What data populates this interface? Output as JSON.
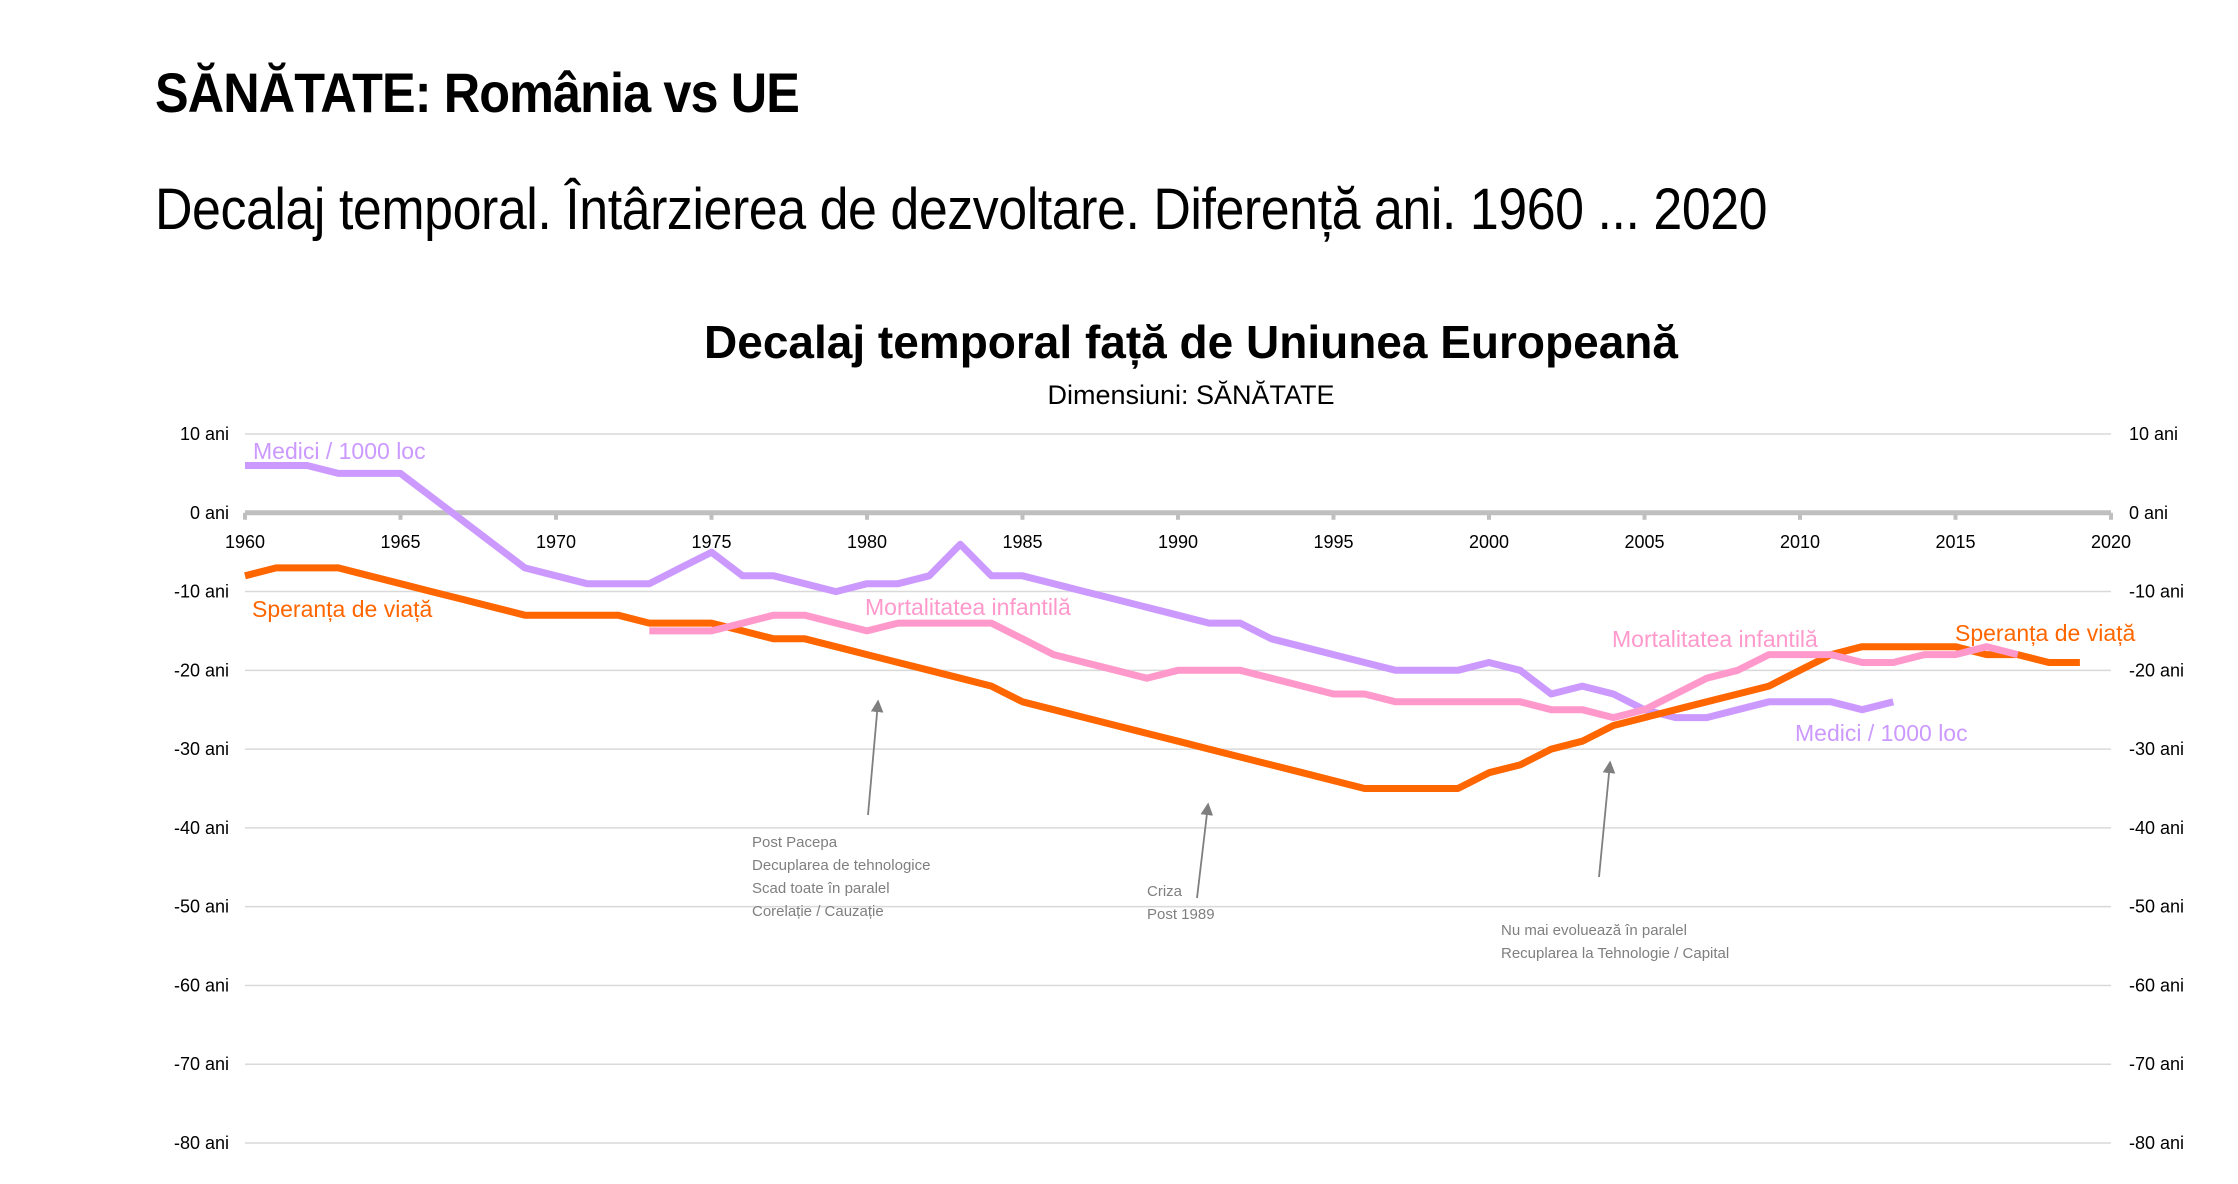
{
  "page": {
    "title": "SĂNĂTATE: România vs UE",
    "subtitle": "Decalaj temporal. Întârzierea de dezvoltare. Diferență ani. 1960 ... 2020"
  },
  "chart_data": {
    "type": "line",
    "title": "Decalaj temporal față de Uniunea Europeană",
    "subtitle": "Dimensiuni: SĂNĂTATE",
    "xlabel": "",
    "ylabel": "",
    "xlim": [
      1960,
      2020
    ],
    "ylim": [
      -80,
      10
    ],
    "x_ticks": [
      1960,
      1965,
      1970,
      1975,
      1980,
      1985,
      1990,
      1995,
      2000,
      2005,
      2010,
      2015,
      2020
    ],
    "y_ticks": [
      10,
      0,
      -10,
      -20,
      -30,
      -40,
      -50,
      -60,
      -70,
      -80
    ],
    "y_tick_suffix": " ani",
    "grid": true,
    "dual_y_axis": true,
    "series": [
      {
        "name": "Medici / 1000 loc",
        "color": "#CC99FF",
        "x": [
          1960,
          1961,
          1962,
          1963,
          1964,
          1965,
          1966,
          1967,
          1968,
          1969,
          1970,
          1971,
          1972,
          1973,
          1974,
          1975,
          1976,
          1977,
          1978,
          1979,
          1980,
          1981,
          1982,
          1983,
          1984,
          1985,
          1986,
          1987,
          1988,
          1989,
          1990,
          1991,
          1992,
          1993,
          1994,
          1995,
          1996,
          1997,
          1998,
          1999,
          2000,
          2001,
          2002,
          2003,
          2004,
          2005,
          2006,
          2007,
          2008,
          2009,
          2010,
          2011,
          2012,
          2013
        ],
        "values": [
          6,
          6,
          6,
          5,
          5,
          5,
          2,
          -1,
          -4,
          -7,
          -8,
          -9,
          -9,
          -9,
          -7,
          -5,
          -8,
          -8,
          -9,
          -10,
          -9,
          -9,
          -8,
          -4,
          -8,
          -8,
          -9,
          -10,
          -11,
          -12,
          -13,
          -14,
          -14,
          -16,
          -17,
          -18,
          -19,
          -20,
          -20,
          -20,
          -19,
          -20,
          -23,
          -22,
          -23,
          -25,
          -26,
          -26,
          -25,
          -24,
          -24,
          -24,
          -25,
          -24
        ],
        "labels": [
          {
            "text": "Medici / 1000 loc",
            "position": "top-left"
          },
          {
            "text": "Medici / 1000 loc",
            "position": "right"
          }
        ]
      },
      {
        "name": "Speranța de viață",
        "color": "#FF6600",
        "x": [
          1960,
          1961,
          1962,
          1963,
          1964,
          1965,
          1966,
          1967,
          1968,
          1969,
          1970,
          1971,
          1972,
          1973,
          1974,
          1975,
          1976,
          1977,
          1978,
          1979,
          1980,
          1981,
          1982,
          1983,
          1984,
          1985,
          1986,
          1987,
          1988,
          1989,
          1990,
          1991,
          1992,
          1993,
          1994,
          1995,
          1996,
          1997,
          1998,
          1999,
          2000,
          2001,
          2002,
          2003,
          2004,
          2005,
          2006,
          2007,
          2008,
          2009,
          2010,
          2011,
          2012,
          2013,
          2014,
          2015,
          2016,
          2017,
          2018,
          2019
        ],
        "values": [
          -8,
          -7,
          -7,
          -7,
          -8,
          -9,
          -10,
          -11,
          -12,
          -13,
          -13,
          -13,
          -13,
          -14,
          -14,
          -14,
          -15,
          -16,
          -16,
          -17,
          -18,
          -19,
          -20,
          -21,
          -22,
          -24,
          -25,
          -26,
          -27,
          -28,
          -29,
          -30,
          -31,
          -32,
          -33,
          -34,
          -35,
          -35,
          -35,
          -35,
          -33,
          -32,
          -30,
          -29,
          -27,
          -26,
          -25,
          -24,
          -23,
          -22,
          -20,
          -18,
          -17,
          -17,
          -17,
          -17,
          -18,
          -18,
          -19,
          -19
        ],
        "labels": [
          {
            "text": "Speranța de viață",
            "position": "left"
          },
          {
            "text": "Speranța de viață",
            "position": "top-right"
          }
        ]
      },
      {
        "name": "Mortalitatea infantilă",
        "color": "#FF99CC",
        "x": [
          1973,
          1974,
          1975,
          1976,
          1977,
          1978,
          1979,
          1980,
          1981,
          1982,
          1983,
          1984,
          1985,
          1986,
          1987,
          1988,
          1989,
          1990,
          1991,
          1992,
          1993,
          1994,
          1995,
          1996,
          1997,
          1998,
          1999,
          2000,
          2001,
          2002,
          2003,
          2004,
          2005,
          2006,
          2007,
          2008,
          2009,
          2010,
          2011,
          2012,
          2013,
          2014,
          2015,
          2016,
          2017
        ],
        "values": [
          -15,
          -15,
          -15,
          -14,
          -13,
          -13,
          -14,
          -15,
          -14,
          -14,
          -14,
          -14,
          -16,
          -18,
          -19,
          -20,
          -21,
          -20,
          -20,
          -20,
          -21,
          -22,
          -23,
          -23,
          -24,
          -24,
          -24,
          -24,
          -24,
          -25,
          -25,
          -26,
          -25,
          -23,
          -21,
          -20,
          -18,
          -18,
          -18,
          -19,
          -19,
          -18,
          -18,
          -17,
          -18
        ],
        "labels": [
          {
            "text": "Mortalitatea infantilă",
            "position": "center"
          },
          {
            "text": "Mortalitatea infantilă",
            "position": "right"
          }
        ]
      }
    ],
    "annotations": [
      {
        "lines": [
          "Post Pacepa",
          "Decuplarea de tehnologice",
          "Scad toate în paralel",
          "Corelație / Cauzație"
        ],
        "arrow_year": 1980,
        "arrow_value": -24
      },
      {
        "lines": [
          "Criza",
          "Post 1989"
        ],
        "arrow_year": 1991,
        "arrow_value": -37
      },
      {
        "lines": [
          "Nu mai evoluează în paralel",
          "Recuplarea la Tehnologie / Capital"
        ],
        "arrow_year": 2004,
        "arrow_value": -32
      }
    ]
  }
}
